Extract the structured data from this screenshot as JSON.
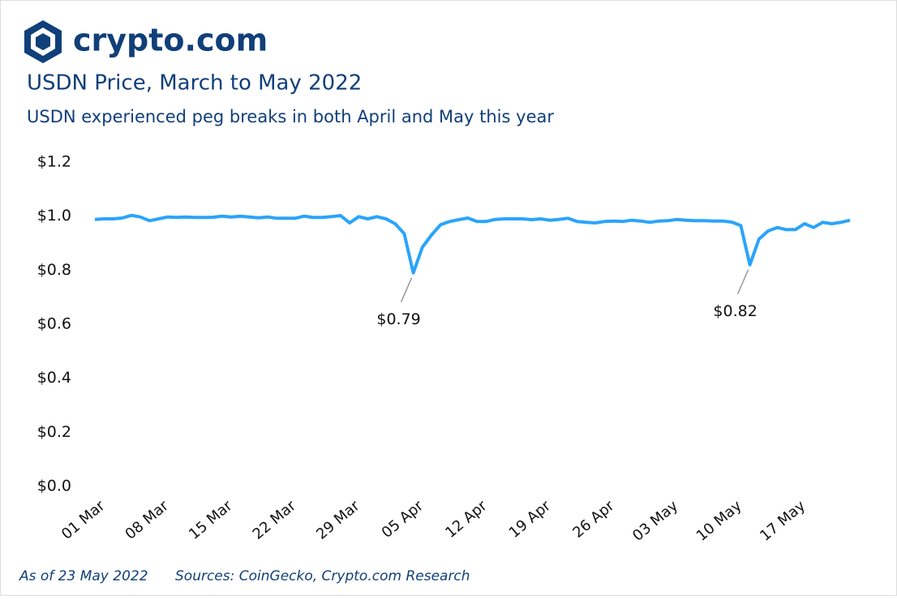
{
  "brand": "crypto.com",
  "chart_data": {
    "type": "line",
    "title": "USDN Price, March to May 2022",
    "subtitle": "USDN experienced peg breaks in both April and May this year",
    "note": "As of 23 May 2022",
    "source": "Sources: CoinGecko, Crypto.com Research",
    "color": "#2aa4fb",
    "categories": [
      "01 Mar",
      null,
      null,
      null,
      null,
      null,
      null,
      "08 Mar",
      null,
      null,
      null,
      null,
      null,
      null,
      "15 Mar",
      null,
      null,
      null,
      null,
      null,
      null,
      "22 Mar",
      null,
      null,
      null,
      null,
      null,
      null,
      "29 Mar",
      null,
      null,
      null,
      null,
      null,
      null,
      "05 Apr",
      null,
      null,
      null,
      null,
      null,
      null,
      "12 Apr",
      null,
      null,
      null,
      null,
      null,
      null,
      "19 Apr",
      null,
      null,
      null,
      null,
      null,
      null,
      "26 Apr",
      null,
      null,
      null,
      null,
      null,
      null,
      "03 May",
      null,
      null,
      null,
      null,
      null,
      null,
      "10 May",
      null,
      null,
      null,
      null,
      null,
      null,
      "17 May",
      null,
      null,
      null,
      null,
      null,
      null
    ],
    "values": [
      0.988,
      0.99,
      0.99,
      0.993,
      1.003,
      0.997,
      0.983,
      0.99,
      0.997,
      0.995,
      0.997,
      0.995,
      0.995,
      0.996,
      1.0,
      0.997,
      1.0,
      0.997,
      0.994,
      0.997,
      0.992,
      0.992,
      0.992,
      1.0,
      0.995,
      0.995,
      0.998,
      1.002,
      0.975,
      0.998,
      0.99,
      0.998,
      0.99,
      0.972,
      0.935,
      0.79,
      0.885,
      0.93,
      0.968,
      0.98,
      0.987,
      0.993,
      0.98,
      0.98,
      0.988,
      0.99,
      0.99,
      0.99,
      0.987,
      0.99,
      0.985,
      0.988,
      0.992,
      0.98,
      0.977,
      0.975,
      0.98,
      0.982,
      0.98,
      0.985,
      0.982,
      0.977,
      0.982,
      0.983,
      0.988,
      0.985,
      0.983,
      0.983,
      0.982,
      0.982,
      0.978,
      0.965,
      0.82,
      0.915,
      0.945,
      0.958,
      0.95,
      0.95,
      0.972,
      0.958,
      0.977,
      0.972,
      0.977,
      0.985
    ],
    "value_labels": [
      null,
      null,
      null,
      null,
      null,
      null,
      null,
      null,
      null,
      null,
      null,
      null,
      null,
      null,
      null,
      null,
      null,
      null,
      null,
      null,
      null,
      null,
      null,
      null,
      null,
      null,
      null,
      null,
      null,
      null,
      null,
      null,
      null,
      null,
      null,
      "$0.79",
      null,
      null,
      null,
      null,
      null,
      null,
      null,
      null,
      null,
      null,
      null,
      null,
      null,
      null,
      null,
      null,
      null,
      null,
      null,
      null,
      null,
      null,
      null,
      null,
      null,
      null,
      null,
      null,
      null,
      null,
      null,
      null,
      null,
      null,
      null,
      null,
      "$0.82",
      null,
      null,
      null,
      null,
      null,
      null,
      null,
      null,
      null,
      null,
      null
    ],
    "ylim": [
      0,
      1.2
    ],
    "yticks": [
      {
        "value": 0,
        "label": "$0.0"
      },
      {
        "value": 0.2,
        "label": "$0.2"
      },
      {
        "value": 0.4,
        "label": "$0.4"
      },
      {
        "value": 0.6,
        "label": "$0.6"
      },
      {
        "value": 0.8,
        "label": "$0.8"
      },
      {
        "value": 1,
        "label": "$1.0"
      },
      {
        "value": 1.2,
        "label": "$1.2"
      }
    ],
    "grid": false
  }
}
